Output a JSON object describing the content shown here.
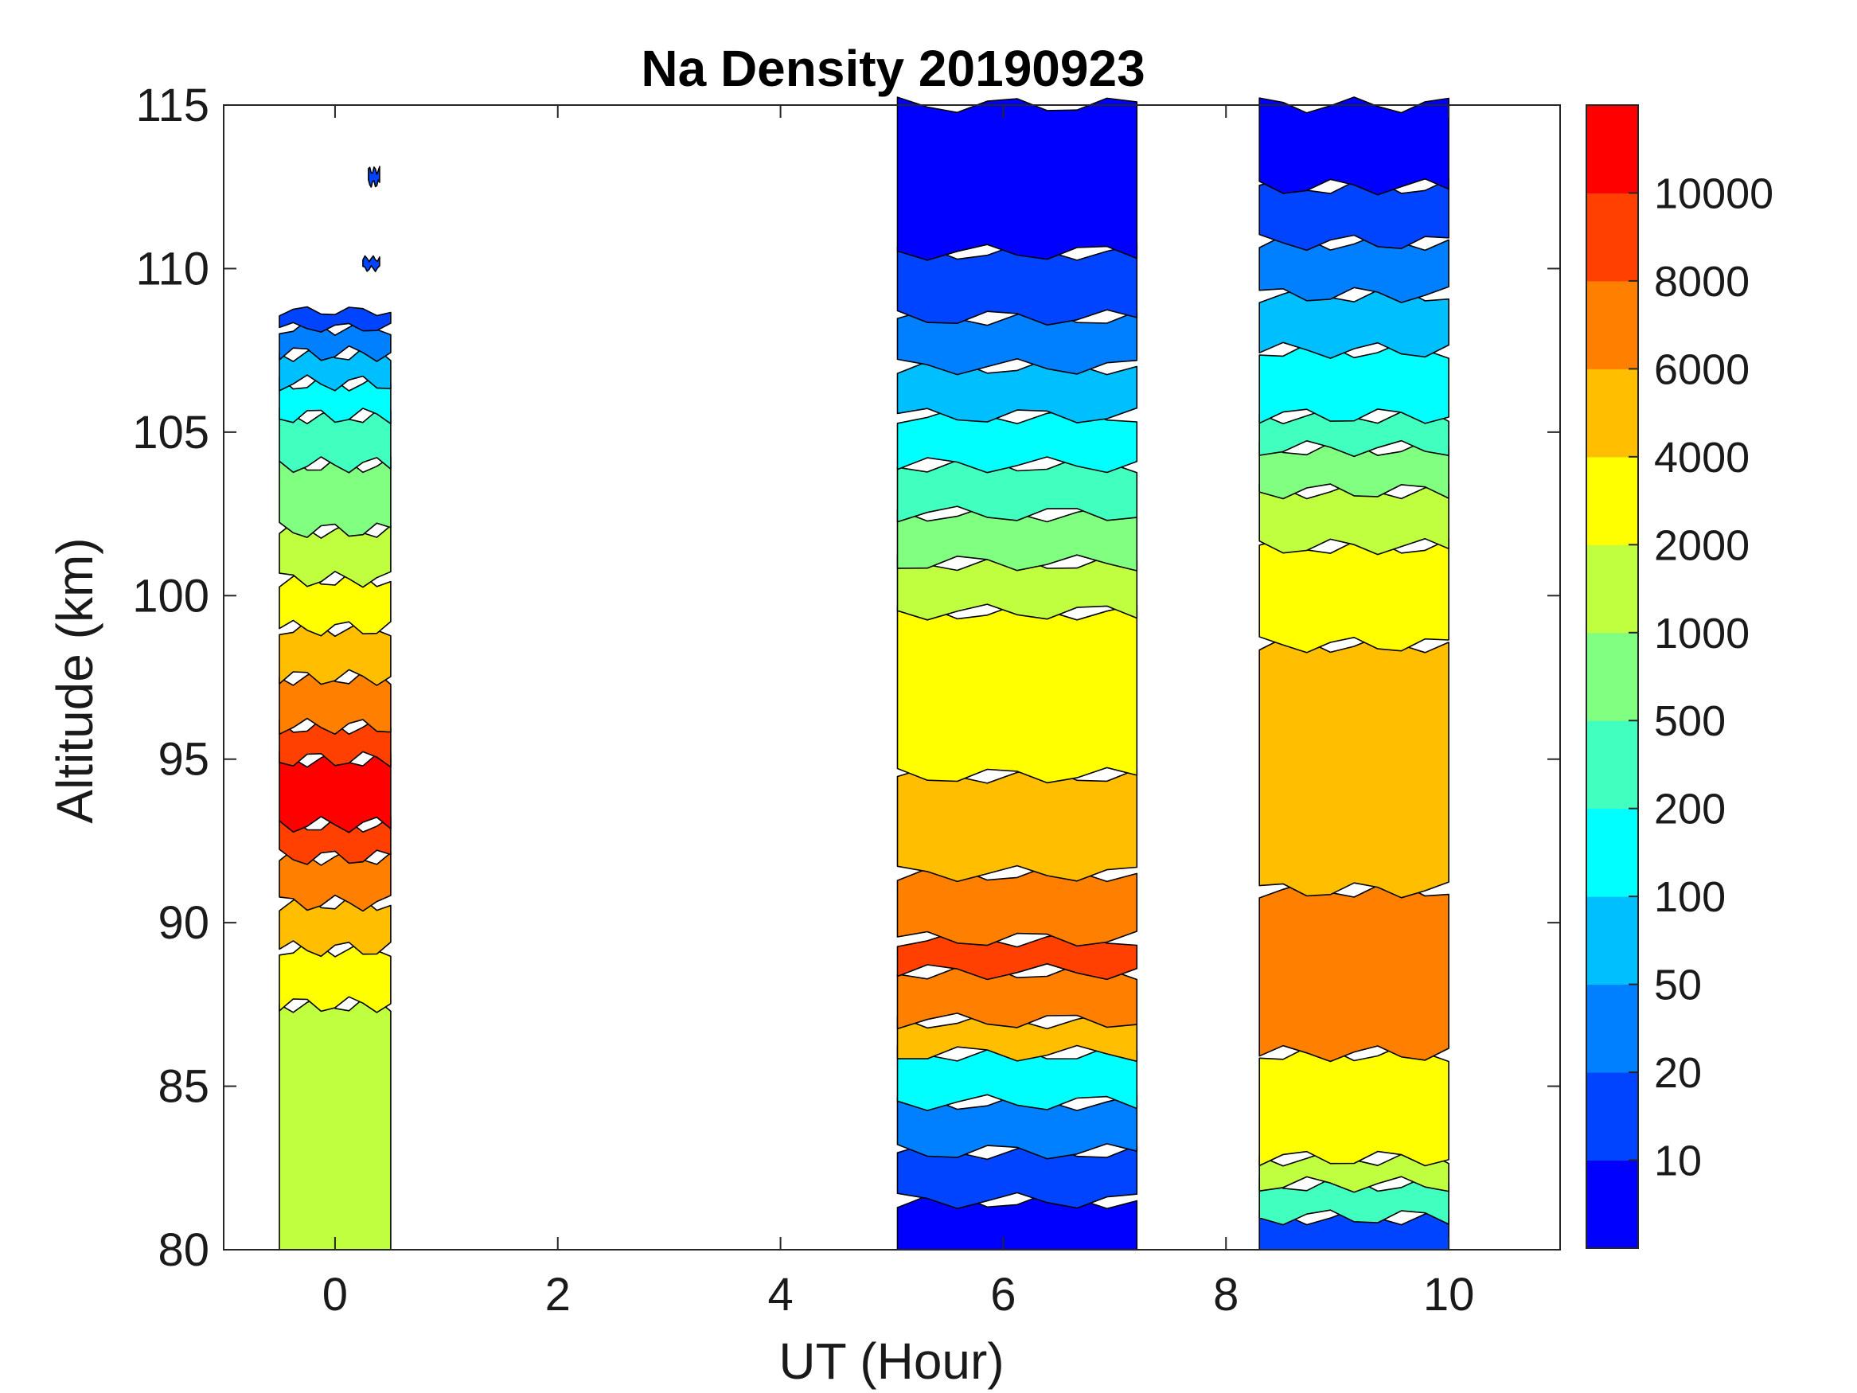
{
  "chart_data": {
    "type": "heatmap",
    "subtype": "filled-contour",
    "title": "Na Density 20190923",
    "xlabel": "UT (Hour)",
    "ylabel": "Altitude (km)",
    "xlim": [
      -1,
      11
    ],
    "ylim": [
      80,
      115
    ],
    "xticks": [
      "0",
      "2",
      "4",
      "6",
      "8",
      "10"
    ],
    "yticks": [
      "80",
      "85",
      "90",
      "95",
      "100",
      "105",
      "110",
      "115"
    ],
    "grid": false,
    "colorbar": {
      "levels": [
        "10",
        "20",
        "50",
        "100",
        "200",
        "500",
        "1000",
        "2000",
        "4000",
        "6000",
        "8000",
        "10000"
      ],
      "colors": [
        "#0000ff",
        "#0044ff",
        "#0080ff",
        "#00bfff",
        "#00ffff",
        "#40ffbf",
        "#80ff80",
        "#bfff40",
        "#ffff00",
        "#ffbf00",
        "#ff8000",
        "#ff4000",
        "#ff0000"
      ]
    },
    "segments": [
      {
        "ut_range": [
          -0.5,
          0.5
        ],
        "bands": [
          {
            "alt": [
              80.0,
              87.5
            ],
            "level_index": 7
          },
          {
            "alt": [
              87.5,
              89.2
            ],
            "level_index": 8
          },
          {
            "alt": [
              89.2,
              90.6
            ],
            "level_index": 9
          },
          {
            "alt": [
              90.6,
              92.0
            ],
            "level_index": 10
          },
          {
            "alt": [
              92.0,
              93.0
            ],
            "level_index": 11
          },
          {
            "alt": [
              93.0,
              95.0
            ],
            "level_index": 12
          },
          {
            "alt": [
              95.0,
              96.0
            ],
            "level_index": 11
          },
          {
            "alt": [
              96.0,
              97.5
            ],
            "level_index": 10
          },
          {
            "alt": [
              97.5,
              99.0
            ],
            "level_index": 9
          },
          {
            "alt": [
              99.0,
              100.5
            ],
            "level_index": 8
          },
          {
            "alt": [
              100.5,
              102.0
            ],
            "level_index": 7
          },
          {
            "alt": [
              102.0,
              104.0
            ],
            "level_index": 6
          },
          {
            "alt": [
              104.0,
              105.5
            ],
            "level_index": 5
          },
          {
            "alt": [
              105.5,
              106.5
            ],
            "level_index": 4
          },
          {
            "alt": [
              106.5,
              107.4
            ],
            "level_index": 3
          },
          {
            "alt": [
              107.4,
              108.2
            ],
            "level_index": 2
          },
          {
            "alt": [
              108.2,
              108.7
            ],
            "level_index": 1
          },
          {
            "alt": [
              110.0,
              110.3
            ],
            "level_index": 1,
            "ut_range": [
              0.25,
              0.4
            ]
          },
          {
            "alt": [
              112.6,
              113.0
            ],
            "level_index": 1,
            "ut_range": [
              0.3,
              0.4
            ]
          }
        ]
      },
      {
        "ut_range": [
          5.05,
          7.2
        ],
        "bands": [
          {
            "alt": [
              80.0,
              81.5
            ],
            "level_index": 0
          },
          {
            "alt": [
              81.5,
              83.0
            ],
            "level_index": 1
          },
          {
            "alt": [
              83.0,
              84.5
            ],
            "level_index": 2
          },
          {
            "alt": [
              84.5,
              86.0
            ],
            "level_index": 4
          },
          {
            "alt": [
              86.0,
              87.0
            ],
            "level_index": 9
          },
          {
            "alt": [
              87.0,
              88.5
            ],
            "level_index": 10
          },
          {
            "alt": [
              88.5,
              89.5
            ],
            "level_index": 11
          },
          {
            "alt": [
              89.5,
              91.5
            ],
            "level_index": 10
          },
          {
            "alt": [
              91.5,
              94.5
            ],
            "level_index": 9
          },
          {
            "alt": [
              94.5,
              99.5
            ],
            "level_index": 8
          },
          {
            "alt": [
              99.5,
              101.0
            ],
            "level_index": 7
          },
          {
            "alt": [
              101.0,
              102.5
            ],
            "level_index": 6
          },
          {
            "alt": [
              102.5,
              104.0
            ],
            "level_index": 5
          },
          {
            "alt": [
              104.0,
              105.5
            ],
            "level_index": 4
          },
          {
            "alt": [
              105.5,
              107.0
            ],
            "level_index": 3
          },
          {
            "alt": [
              107.0,
              108.5
            ],
            "level_index": 2
          },
          {
            "alt": [
              108.5,
              110.5
            ],
            "level_index": 1
          },
          {
            "alt": [
              110.5,
              115.0
            ],
            "level_index": 0
          }
        ]
      },
      {
        "ut_range": [
          8.3,
          10.0
        ],
        "bands": [
          {
            "alt": [
              80.0,
              81.0
            ],
            "level_index": 1
          },
          {
            "alt": [
              81.0,
              82.0
            ],
            "level_index": 5
          },
          {
            "alt": [
              82.0,
              82.8
            ],
            "level_index": 7
          },
          {
            "alt": [
              82.8,
              86.0
            ],
            "level_index": 8
          },
          {
            "alt": [
              86.0,
              91.0
            ],
            "level_index": 10
          },
          {
            "alt": [
              91.0,
              98.5
            ],
            "level_index": 9
          },
          {
            "alt": [
              98.5,
              101.5
            ],
            "level_index": 8
          },
          {
            "alt": [
              101.5,
              103.2
            ],
            "level_index": 7
          },
          {
            "alt": [
              103.2,
              104.5
            ],
            "level_index": 6
          },
          {
            "alt": [
              104.5,
              105.5
            ],
            "level_index": 5
          },
          {
            "alt": [
              105.5,
              107.5
            ],
            "level_index": 4
          },
          {
            "alt": [
              107.5,
              109.2
            ],
            "level_index": 3
          },
          {
            "alt": [
              109.2,
              110.8
            ],
            "level_index": 2
          },
          {
            "alt": [
              110.8,
              112.5
            ],
            "level_index": 1
          },
          {
            "alt": [
              112.5,
              115.0
            ],
            "level_index": 0
          }
        ]
      }
    ]
  }
}
